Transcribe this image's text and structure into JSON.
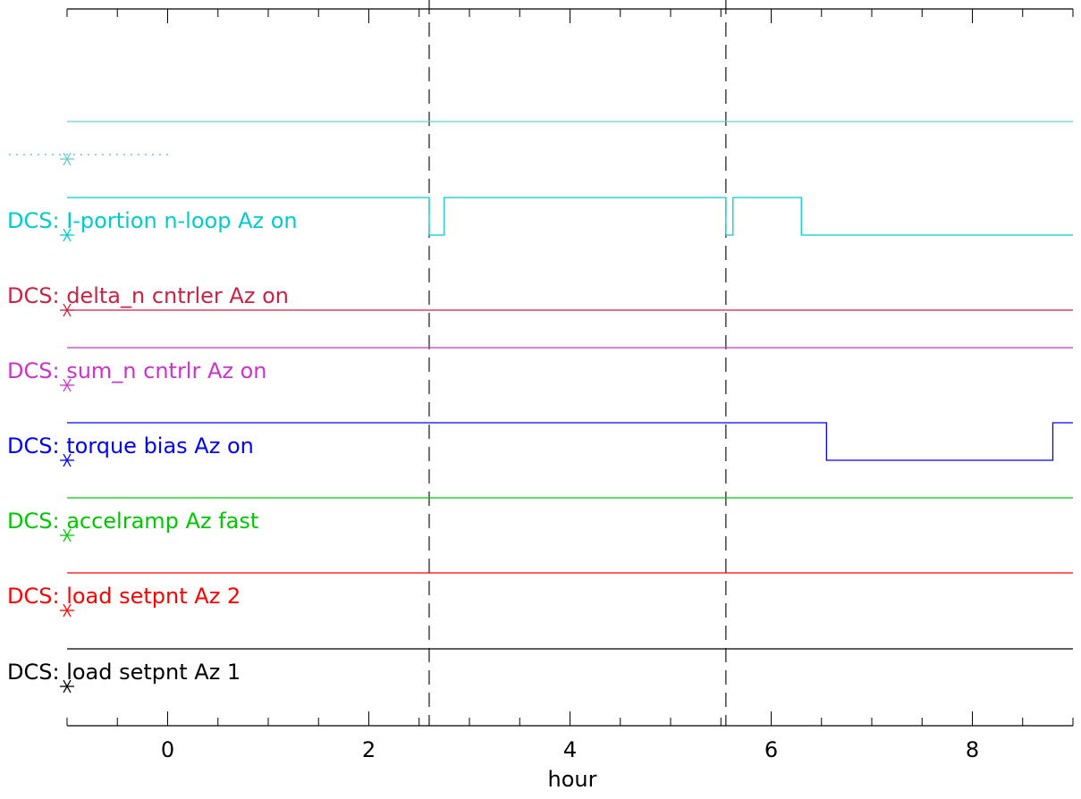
{
  "chart_data": {
    "type": "line",
    "subtype": "step",
    "title": "",
    "xlabel": "hour",
    "ylabel": "",
    "xlim": [
      -1,
      9
    ],
    "x_ticks": [
      0,
      2,
      4,
      6,
      8
    ],
    "x_tick_labels": [
      "0",
      "2",
      "4",
      "6",
      "8"
    ],
    "grid": false,
    "legend": "left-inline",
    "markers": [
      2.6,
      5.55
    ],
    "marker_style": "dashed",
    "series": [
      {
        "name": "DCS: load setpnt Az 1",
        "color": "#000000",
        "segments": [
          {
            "x": [
              -1,
              9
            ],
            "level": 1
          }
        ]
      },
      {
        "name": "DCS: load setpnt Az 2",
        "color": "#ff0000",
        "segments": [
          {
            "x": [
              -1,
              9
            ],
            "level": 1
          }
        ]
      },
      {
        "name": "DCS: accelramp Az fast",
        "color": "#00c800",
        "segments": [
          {
            "x": [
              -1,
              9
            ],
            "level": 1
          }
        ]
      },
      {
        "name": "DCS: torque bias Az on",
        "color": "#0000ff",
        "segments": [
          {
            "x": [
              -1,
              6.55
            ],
            "level": 1
          },
          {
            "x": [
              6.55,
              8.8
            ],
            "level": 0
          },
          {
            "x": [
              8.8,
              9
            ],
            "level": 1
          }
        ]
      },
      {
        "name": "DCS: sum_n cntrlr Az on",
        "color": "#cc33cc",
        "segments": [
          {
            "x": [
              -1,
              9
            ],
            "level": 1
          }
        ]
      },
      {
        "name": "DCS: delta_n cntrler Az on",
        "color": "#cc2244",
        "segments": [
          {
            "x": [
              -1,
              9
            ],
            "level": 0
          }
        ]
      },
      {
        "name": "DCS: I-portion n-loop Az on",
        "color": "#00cccc",
        "segments": [
          {
            "x": [
              -1,
              2.6
            ],
            "level": 1
          },
          {
            "x": [
              2.6,
              2.75
            ],
            "level": 0
          },
          {
            "x": [
              2.75,
              5.55
            ],
            "level": 1
          },
          {
            "x": [
              5.55,
              5.62
            ],
            "level": 0
          },
          {
            "x": [
              5.62,
              6.3
            ],
            "level": 1
          },
          {
            "x": [
              6.3,
              9
            ],
            "level": 0
          }
        ]
      },
      {
        "name": "",
        "color": "#66cccc",
        "segments": [
          {
            "x": [
              -1,
              9
            ],
            "level": 1
          }
        ]
      }
    ]
  }
}
